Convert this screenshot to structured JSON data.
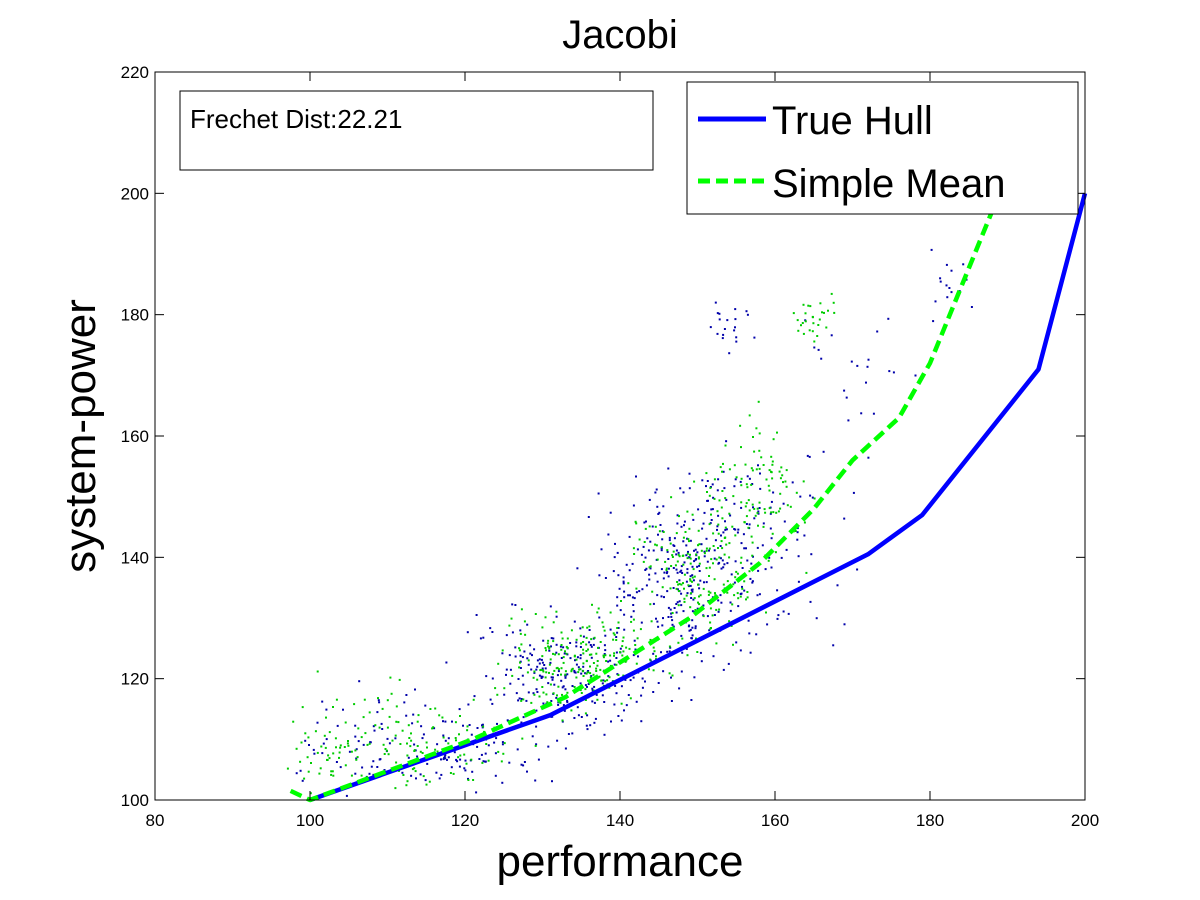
{
  "chart_data": {
    "type": "scatter",
    "title": "Jacobi",
    "xlabel": "performance",
    "ylabel": "system-power",
    "xlim": [
      80,
      200
    ],
    "ylim": [
      100,
      220
    ],
    "xticks": [
      "80",
      "100",
      "120",
      "140",
      "160",
      "180",
      "200"
    ],
    "yticks": [
      "100",
      "120",
      "140",
      "160",
      "180",
      "200",
      "220"
    ],
    "grid": false,
    "legend_position": "top-right",
    "annotation": "Frechet Dist:22.21",
    "series": [
      {
        "name": "True Hull",
        "style": "solid-line",
        "color": "#0000ff",
        "x": [
          100,
          131,
          172,
          179,
          194,
          200
        ],
        "y": [
          100,
          114,
          140.5,
          147,
          171,
          200
        ]
      },
      {
        "name": "Simple Mean",
        "style": "dashed-line",
        "color": "#00ff00",
        "x": [
          97.5,
          100,
          121,
          133,
          149,
          158,
          165,
          170,
          176,
          180,
          188,
          190
        ],
        "y": [
          101.5,
          100,
          110,
          117,
          130,
          139,
          148,
          156,
          163,
          172,
          197,
          205
        ]
      }
    ],
    "scatter": [
      {
        "color": "#0000aa",
        "clusters": [
          {
            "cx": 115,
            "cy": 109,
            "sx": 10,
            "sy": 4,
            "n": 160
          },
          {
            "cx": 133,
            "cy": 122,
            "sx": 6,
            "sy": 5,
            "n": 230
          },
          {
            "cx": 147,
            "cy": 136,
            "sx": 5,
            "sy": 7,
            "n": 230
          },
          {
            "cx": 156,
            "cy": 142,
            "sx": 6,
            "sy": 8,
            "n": 150
          },
          {
            "cx": 154,
            "cy": 178,
            "sx": 1.5,
            "sy": 1.5,
            "n": 20
          },
          {
            "cx": 170,
            "cy": 172,
            "sx": 4,
            "sy": 6,
            "n": 22
          },
          {
            "cx": 182,
            "cy": 186,
            "sx": 2,
            "sy": 2.5,
            "n": 15
          }
        ]
      },
      {
        "color": "#00cc00",
        "clusters": [
          {
            "cx": 112,
            "cy": 110,
            "sx": 8,
            "sy": 4,
            "n": 140
          },
          {
            "cx": 135,
            "cy": 123,
            "sx": 5,
            "sy": 4,
            "n": 210
          },
          {
            "cx": 150,
            "cy": 138,
            "sx": 4,
            "sy": 6,
            "n": 190
          },
          {
            "cx": 158,
            "cy": 152,
            "sx": 3,
            "sy": 5,
            "n": 90
          },
          {
            "cx": 165,
            "cy": 180,
            "sx": 1.6,
            "sy": 1.6,
            "n": 28
          },
          {
            "cx": 102,
            "cy": 106,
            "sx": 2,
            "sy": 2,
            "n": 20
          }
        ]
      }
    ]
  }
}
